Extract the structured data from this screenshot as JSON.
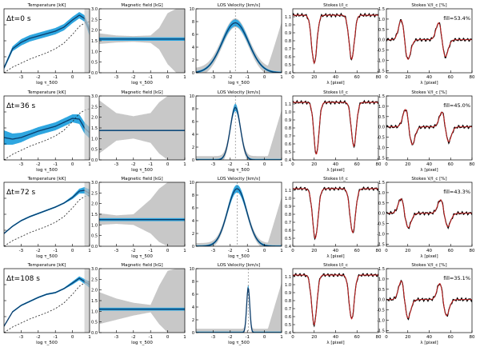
{
  "colors": {
    "envelope": "#c8c8c8",
    "band": "#2ea6e0",
    "mean": "#0b3c6b",
    "obs": "#000000",
    "fit": "#d01f1f",
    "dash": "#222222"
  },
  "chart_data": {
    "type": "line",
    "layout": "grid 4 rows x 5 columns",
    "column_titles": [
      "Temperature [kK]",
      "Magnetic field [kG]",
      "LOS Velocity [km/s]",
      "Stokes I/I_c",
      "Stokes V/I_c [%]"
    ],
    "xlabels": [
      "log τ_500",
      "log τ_500",
      "log τ_500",
      "λ [pixel]",
      "λ [pixel]"
    ],
    "xlim_tau": [
      -4,
      1
    ],
    "xticks_tau": [
      -3,
      -2,
      -1,
      0,
      1
    ],
    "xlim_pixel": [
      0,
      80
    ],
    "xticks_pixel": [
      0,
      20,
      40,
      60,
      80
    ],
    "ylims": [
      [
        4,
        8
      ],
      [
        0,
        3
      ],
      [
        0,
        10
      ],
      [
        0.4,
        1.2
      ],
      [
        -1.6,
        1.5
      ]
    ],
    "yticks": [
      [
        4,
        5,
        6,
        7
      ],
      [
        0.0,
        0.5,
        1.0,
        1.5,
        2.0,
        2.5,
        3.0
      ],
      [
        0,
        2,
        4,
        6,
        8,
        10
      ],
      [
        0.4,
        0.5,
        0.6,
        0.7,
        0.8,
        0.9,
        1.0,
        1.1
      ],
      [
        -1.5,
        -1.0,
        -0.5,
        0.0,
        0.5,
        1.0,
        1.5
      ]
    ],
    "ytick_labels": [
      [
        "4",
        "5",
        "6",
        "7"
      ],
      [
        "0.0",
        "0.5",
        "1.0",
        "1.5",
        "2.0",
        "2.5",
        "3.0"
      ],
      [
        "0",
        "2",
        "4",
        "6",
        "8",
        "10"
      ],
      [
        "0.4",
        "0.5",
        "0.6",
        "0.7",
        "0.8",
        "0.9",
        "1.0",
        "1.1"
      ],
      [
        "-1.5",
        "-1.0",
        "-0.5",
        "0.0",
        "0.5",
        "1.0",
        "1.5"
      ]
    ],
    "rows": [
      {
        "time_label": "Δt=0  s",
        "fill_label": "fill=53.4%",
        "temperature": {
          "x": [
            -4,
            -3.5,
            -3,
            -2.5,
            -2,
            -1.5,
            -1,
            -0.5,
            0,
            0.4,
            0.7,
            1
          ],
          "mean": [
            4.3,
            5.5,
            5.9,
            6.15,
            6.3,
            6.45,
            6.6,
            6.85,
            7.3,
            7.6,
            7.4,
            6.6
          ],
          "halfwidth": [
            0.1,
            0.15,
            0.2,
            0.2,
            0.2,
            0.2,
            0.2,
            0.2,
            0.2,
            0.2,
            0.2,
            0.3
          ],
          "reference": [
            4.0,
            4.35,
            4.6,
            4.85,
            5.05,
            5.25,
            5.5,
            5.85,
            6.4,
            6.9,
            7.1,
            7.2
          ]
        },
        "magnetic_field": {
          "mean": 1.58,
          "halfwidth": 0.08,
          "x": [
            -4,
            -3,
            -2,
            -1,
            -0.5,
            0,
            0.5,
            1
          ],
          "env_low": [
            1.35,
            1.42,
            1.45,
            1.4,
            1.1,
            0.4,
            0.0,
            0.0
          ],
          "env_high": [
            1.85,
            1.75,
            1.72,
            1.75,
            2.1,
            2.8,
            3.0,
            3.0
          ]
        },
        "los_velocity": {
          "center": -1.7,
          "width": 1.1,
          "peak": 7.8,
          "env_pad": 0.7
        },
        "stokes_i": {
          "continuum": 1.12,
          "lines": [
            {
              "center": 20,
              "depth": 0.6,
              "width": 3.5
            },
            {
              "center": 55,
              "depth": 0.55,
              "width": 3.5
            }
          ]
        },
        "stokes_v": {
          "components": [
            {
              "center": 17,
              "amplitude": 0.95,
              "width": 3.2
            },
            {
              "center": 52,
              "amplitude": 0.82,
              "width": 3.2
            }
          ]
        }
      },
      {
        "time_label": "Δt=36 s",
        "fill_label": "fill=45.0%",
        "temperature": {
          "x": [
            -4,
            -3.5,
            -3,
            -2.5,
            -2,
            -1.5,
            -1,
            -0.5,
            0,
            0.4,
            0.7,
            1
          ],
          "mean": [
            5.4,
            5.3,
            5.4,
            5.6,
            5.8,
            5.95,
            6.1,
            6.35,
            6.6,
            6.55,
            6.0,
            5.7
          ],
          "halfwidth": [
            0.45,
            0.35,
            0.3,
            0.25,
            0.25,
            0.25,
            0.25,
            0.25,
            0.25,
            0.3,
            0.35,
            0.35
          ],
          "reference": [
            4.0,
            4.35,
            4.6,
            4.85,
            5.05,
            5.25,
            5.5,
            5.85,
            6.4,
            6.9,
            7.1,
            7.2
          ]
        },
        "magnetic_field": {
          "mean": 1.38,
          "halfwidth": 0.03,
          "x": [
            -4,
            -3,
            -2,
            -1,
            -0.5,
            0,
            0.5,
            1
          ],
          "env_low": [
            0.3,
            0.9,
            1.0,
            0.8,
            0.3,
            0.0,
            0.0,
            0.0
          ],
          "env_high": [
            2.8,
            2.2,
            2.05,
            2.2,
            2.7,
            3.0,
            3.0,
            3.0
          ]
        },
        "los_velocity": {
          "center": -1.7,
          "width": 0.42,
          "peak": 8.2,
          "env_pad": 0.6
        },
        "stokes_i": {
          "continuum": 1.12,
          "lines": [
            {
              "center": 22,
              "depth": 0.65,
              "width": 3.3
            },
            {
              "center": 57,
              "depth": 0.55,
              "width": 3.3
            }
          ]
        },
        "stokes_v": {
          "components": [
            {
              "center": 21,
              "amplitude": 0.85,
              "width": 3.2
            },
            {
              "center": 55,
              "amplitude": 0.72,
              "width": 3.2
            }
          ]
        }
      },
      {
        "time_label": "Δt=72 s",
        "fill_label": "fill=43.3%",
        "temperature": {
          "x": [
            -4,
            -3.5,
            -3,
            -2.5,
            -2,
            -1.5,
            -1,
            -0.5,
            0,
            0.4,
            0.7,
            1
          ],
          "mean": [
            4.8,
            5.25,
            5.6,
            5.85,
            6.05,
            6.25,
            6.45,
            6.7,
            7.05,
            7.45,
            7.5,
            7.3
          ],
          "halfwidth": [
            0.05,
            0.05,
            0.05,
            0.05,
            0.05,
            0.05,
            0.05,
            0.05,
            0.1,
            0.15,
            0.2,
            0.25
          ],
          "reference": [
            4.0,
            4.35,
            4.6,
            4.85,
            5.05,
            5.25,
            5.5,
            5.85,
            6.4,
            6.9,
            7.1,
            7.2
          ]
        },
        "magnetic_field": {
          "mean": 1.25,
          "halfwidth": 0.07,
          "x": [
            -4,
            -3,
            -2,
            -1,
            -0.5,
            0,
            0.5,
            1
          ],
          "env_low": [
            1.0,
            1.05,
            1.0,
            0.6,
            0.2,
            0.0,
            0.0,
            0.0
          ],
          "env_high": [
            1.55,
            1.45,
            1.5,
            2.2,
            2.7,
            3.0,
            3.0,
            3.0
          ]
        },
        "los_velocity": {
          "center": -1.6,
          "width": 0.8,
          "peak": 9.0,
          "env_pad": 0.5
        },
        "stokes_i": {
          "continuum": 1.12,
          "lines": [
            {
              "center": 21,
              "depth": 0.62,
              "width": 3.6
            },
            {
              "center": 56,
              "depth": 0.55,
              "width": 3.6
            }
          ]
        },
        "stokes_v": {
          "components": [
            {
              "center": 17,
              "amplitude": 0.7,
              "width": 3.4
            },
            {
              "center": 54,
              "amplitude": 0.65,
              "width": 3.4
            }
          ]
        }
      },
      {
        "time_label": "Δt=108 s",
        "fill_label": "fill=35.1%",
        "temperature": {
          "x": [
            -4,
            -3.5,
            -3,
            -2.5,
            -2,
            -1.5,
            -1,
            -0.5,
            0,
            0.4,
            0.7,
            1
          ],
          "mean": [
            4.4,
            5.3,
            5.7,
            5.95,
            6.2,
            6.4,
            6.5,
            6.75,
            7.1,
            7.4,
            7.2,
            7.0
          ],
          "halfwidth": [
            0.05,
            0.05,
            0.05,
            0.05,
            0.05,
            0.05,
            0.05,
            0.05,
            0.1,
            0.12,
            0.15,
            0.2
          ],
          "reference": [
            4.0,
            4.35,
            4.6,
            4.85,
            5.05,
            5.25,
            5.5,
            5.85,
            6.4,
            6.9,
            7.1,
            7.2
          ]
        },
        "magnetic_field": {
          "mean": 1.1,
          "halfwidth": 0.07,
          "x": [
            -4,
            -3,
            -2,
            -1,
            -0.5,
            0,
            0.5,
            1
          ],
          "env_low": [
            0.4,
            0.6,
            0.8,
            0.95,
            0.4,
            0.0,
            0.0,
            0.0
          ],
          "env_high": [
            1.9,
            1.6,
            1.4,
            1.3,
            2.2,
            2.9,
            3.0,
            3.0
          ]
        },
        "los_velocity": {
          "center": -0.95,
          "width": 0.13,
          "peak": 7.0,
          "env_pad": 0.6
        },
        "stokes_i": {
          "continuum": 1.12,
          "lines": [
            {
              "center": 20,
              "depth": 0.62,
              "width": 3.4
            },
            {
              "center": 55,
              "depth": 0.55,
              "width": 3.4
            }
          ]
        },
        "stokes_v": {
          "components": [
            {
              "center": 17,
              "amplitude": 0.9,
              "width": 3.2
            },
            {
              "center": 53,
              "amplitude": 0.78,
              "width": 3.2
            }
          ]
        }
      }
    ]
  }
}
